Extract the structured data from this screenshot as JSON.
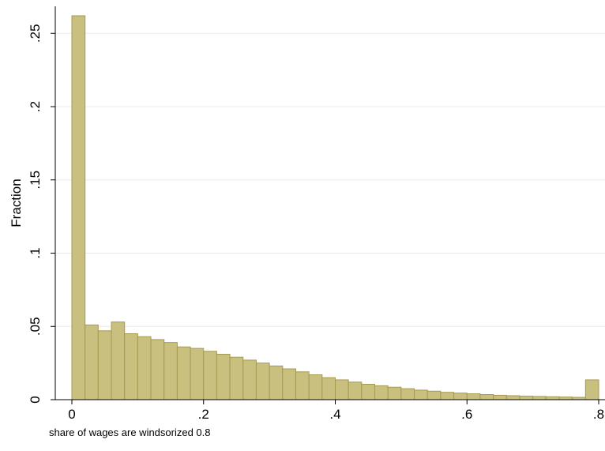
{
  "chart_data": {
    "type": "bar",
    "title": "",
    "xlabel": "",
    "ylabel": "Fraction",
    "note": "share of wages are windsorized 0.8",
    "xlim": [
      0,
      0.8
    ],
    "ylim": [
      0,
      0.26
    ],
    "xticks": [
      0,
      0.2,
      0.4,
      0.6,
      0.8
    ],
    "xtick_labels": [
      "0",
      ".2",
      ".4",
      ".6",
      ".8"
    ],
    "yticks": [
      0,
      0.05,
      0.1,
      0.15,
      0.2,
      0.25
    ],
    "ytick_labels": [
      "0",
      ".05",
      ".1",
      ".15",
      ".2",
      ".25"
    ],
    "grid": "horizontal",
    "bar_color": "#c9bf7f",
    "bar_edge_color": "#a59a52",
    "bin_width": 0.02,
    "bin_starts": [
      0,
      0.02,
      0.04,
      0.06,
      0.08,
      0.1,
      0.12,
      0.14,
      0.16,
      0.18,
      0.2,
      0.22,
      0.24,
      0.26,
      0.28,
      0.3,
      0.32,
      0.34,
      0.36,
      0.38,
      0.4,
      0.42,
      0.44,
      0.46,
      0.48,
      0.5,
      0.52,
      0.54,
      0.56,
      0.58,
      0.6,
      0.62,
      0.64,
      0.66,
      0.68,
      0.7,
      0.72,
      0.74,
      0.76,
      0.78
    ],
    "values": [
      0.262,
      0.051,
      0.047,
      0.053,
      0.045,
      0.043,
      0.041,
      0.039,
      0.036,
      0.035,
      0.033,
      0.031,
      0.029,
      0.027,
      0.025,
      0.023,
      0.021,
      0.019,
      0.017,
      0.015,
      0.0135,
      0.012,
      0.0105,
      0.0095,
      0.0085,
      0.0075,
      0.0065,
      0.0058,
      0.005,
      0.0045,
      0.004,
      0.0035,
      0.003,
      0.0027,
      0.0024,
      0.0022,
      0.002,
      0.0018,
      0.0016,
      0.0135
    ]
  }
}
